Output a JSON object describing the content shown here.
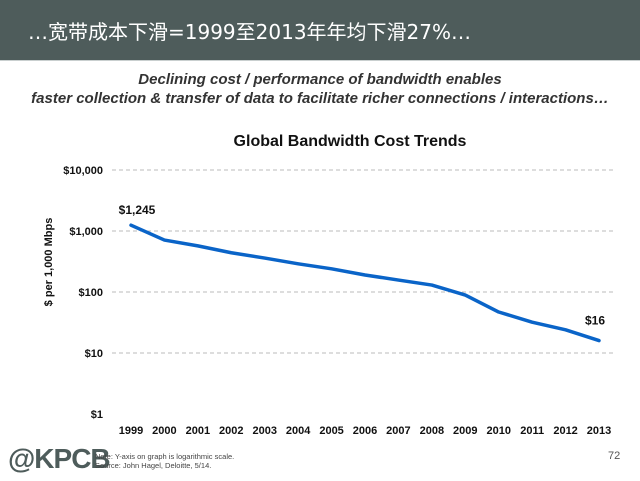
{
  "header": {
    "title": "…宽带成本下滑=1999至2013年年均下滑27%…"
  },
  "subtitle": [
    "Declining cost / performance of bandwidth enables",
    "faster collection & transfer of data to facilitate richer connections / interactions…"
  ],
  "chart_data": {
    "type": "line",
    "title": "Global Bandwidth Cost Trends",
    "xlabel": "",
    "ylabel": "$ per 1,000 Mbps",
    "yscale": "log",
    "ylim": [
      1,
      10000
    ],
    "yticks": [
      {
        "v": 10000,
        "label": "$10,000"
      },
      {
        "v": 1000,
        "label": "$1,000"
      },
      {
        "v": 100,
        "label": "$100"
      },
      {
        "v": 10,
        "label": "$10"
      },
      {
        "v": 1,
        "label": "$1"
      }
    ],
    "categories": [
      "1999",
      "2000",
      "2001",
      "2002",
      "2003",
      "2004",
      "2005",
      "2006",
      "2007",
      "2008",
      "2009",
      "2010",
      "2011",
      "2012",
      "2013"
    ],
    "values": [
      1245,
      710,
      570,
      440,
      360,
      290,
      240,
      190,
      157,
      130,
      89,
      47,
      32,
      24,
      16
    ],
    "annotations": [
      {
        "index": 0,
        "label": "$1,245"
      },
      {
        "index": 14,
        "label": "$16"
      }
    ],
    "grid": true,
    "color": "#0a64c8"
  },
  "footer": {
    "logo": "@KPCB",
    "note": "Note: Y-axis on graph is logarithmic scale.",
    "source": "Source: John Hagel, Deloitte, 5/14.",
    "page": "72"
  }
}
